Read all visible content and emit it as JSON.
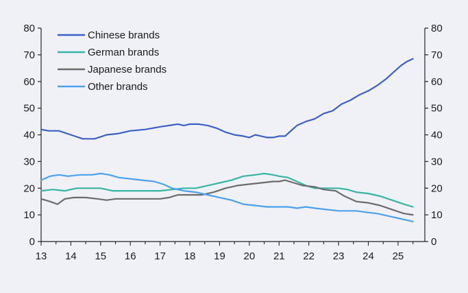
{
  "chart_data": {
    "type": "line",
    "title": "",
    "xlabel": "",
    "ylabel": "",
    "xlim": [
      13,
      25.9
    ],
    "ylim": [
      0,
      80
    ],
    "grid": false,
    "legend_position": "top-left",
    "x_ticks": [
      13,
      14,
      15,
      16,
      17,
      18,
      19,
      20,
      21,
      22,
      23,
      24,
      25
    ],
    "x_tick_labels": [
      "13",
      "14",
      "15",
      "16",
      "17",
      "18",
      "19",
      "20",
      "21",
      "22",
      "23",
      "24",
      "25"
    ],
    "y_ticks": [
      0,
      10,
      20,
      30,
      40,
      50,
      60,
      70,
      80
    ],
    "y_tick_labels": [
      "0",
      "10",
      "20",
      "30",
      "40",
      "50",
      "60",
      "70",
      "80"
    ],
    "x_minor_step": 0.5,
    "series": [
      {
        "name": "Chinese brands",
        "color": "#3a5fc8",
        "points": [
          [
            13.0,
            42
          ],
          [
            13.25,
            41.5
          ],
          [
            13.6,
            41.5
          ],
          [
            14.0,
            40
          ],
          [
            14.4,
            38.5
          ],
          [
            14.8,
            38.5
          ],
          [
            15.2,
            40
          ],
          [
            15.6,
            40.5
          ],
          [
            16.0,
            41.5
          ],
          [
            16.5,
            42
          ],
          [
            17.0,
            43
          ],
          [
            17.3,
            43.5
          ],
          [
            17.6,
            44
          ],
          [
            17.8,
            43.5
          ],
          [
            18.0,
            44
          ],
          [
            18.3,
            44
          ],
          [
            18.6,
            43.5
          ],
          [
            18.9,
            42.5
          ],
          [
            19.2,
            41
          ],
          [
            19.5,
            40
          ],
          [
            19.8,
            39.5
          ],
          [
            20.0,
            39
          ],
          [
            20.2,
            40
          ],
          [
            20.4,
            39.5
          ],
          [
            20.6,
            39
          ],
          [
            20.8,
            39
          ],
          [
            21.0,
            39.5
          ],
          [
            21.2,
            39.5
          ],
          [
            21.35,
            41
          ],
          [
            21.6,
            43.5
          ],
          [
            21.9,
            45
          ],
          [
            22.2,
            46
          ],
          [
            22.5,
            48
          ],
          [
            22.8,
            49
          ],
          [
            23.1,
            51.5
          ],
          [
            23.4,
            53
          ],
          [
            23.7,
            55
          ],
          [
            24.0,
            56.5
          ],
          [
            24.3,
            58.5
          ],
          [
            24.6,
            61
          ],
          [
            24.9,
            64
          ],
          [
            25.1,
            66
          ],
          [
            25.3,
            67.5
          ],
          [
            25.5,
            68.5
          ]
        ]
      },
      {
        "name": "German brands",
        "color": "#35b5a2",
        "points": [
          [
            13.0,
            19
          ],
          [
            13.4,
            19.5
          ],
          [
            13.8,
            19
          ],
          [
            14.2,
            20
          ],
          [
            14.6,
            20
          ],
          [
            15.0,
            20
          ],
          [
            15.4,
            19
          ],
          [
            15.8,
            19
          ],
          [
            16.2,
            19
          ],
          [
            16.6,
            19
          ],
          [
            17.0,
            19
          ],
          [
            17.4,
            19.5
          ],
          [
            17.8,
            20
          ],
          [
            18.2,
            20
          ],
          [
            18.6,
            21
          ],
          [
            19.0,
            22
          ],
          [
            19.4,
            23
          ],
          [
            19.8,
            24.5
          ],
          [
            20.2,
            25
          ],
          [
            20.5,
            25.5
          ],
          [
            20.8,
            25
          ],
          [
            21.0,
            24.5
          ],
          [
            21.3,
            24
          ],
          [
            21.6,
            22.5
          ],
          [
            21.9,
            21
          ],
          [
            22.2,
            20
          ],
          [
            22.6,
            20
          ],
          [
            23.0,
            20
          ],
          [
            23.3,
            19.5
          ],
          [
            23.6,
            18.5
          ],
          [
            24.0,
            18
          ],
          [
            24.4,
            17
          ],
          [
            24.8,
            15.5
          ],
          [
            25.2,
            14
          ],
          [
            25.5,
            13
          ]
        ]
      },
      {
        "name": "Japanese brands",
        "color": "#6b6b6b",
        "points": [
          [
            13.0,
            16
          ],
          [
            13.3,
            15
          ],
          [
            13.55,
            14
          ],
          [
            13.8,
            16
          ],
          [
            14.1,
            16.5
          ],
          [
            14.5,
            16.5
          ],
          [
            14.9,
            16
          ],
          [
            15.2,
            15.5
          ],
          [
            15.5,
            16
          ],
          [
            15.8,
            16
          ],
          [
            16.2,
            16
          ],
          [
            16.6,
            16
          ],
          [
            17.0,
            16
          ],
          [
            17.3,
            16.5
          ],
          [
            17.6,
            17.5
          ],
          [
            18.0,
            17.5
          ],
          [
            18.4,
            17.5
          ],
          [
            18.8,
            18.5
          ],
          [
            19.2,
            20
          ],
          [
            19.6,
            21
          ],
          [
            20.0,
            21.5
          ],
          [
            20.4,
            22
          ],
          [
            20.8,
            22.5
          ],
          [
            21.0,
            22.5
          ],
          [
            21.2,
            23
          ],
          [
            21.5,
            22
          ],
          [
            21.8,
            21
          ],
          [
            22.2,
            20.5
          ],
          [
            22.5,
            19.5
          ],
          [
            22.9,
            19
          ],
          [
            23.2,
            17
          ],
          [
            23.6,
            15
          ],
          [
            24.0,
            14.5
          ],
          [
            24.4,
            13.5
          ],
          [
            24.8,
            12
          ],
          [
            25.2,
            10.5
          ],
          [
            25.5,
            10
          ]
        ]
      },
      {
        "name": "Other brands",
        "color": "#4aa1f0",
        "points": [
          [
            13.0,
            23
          ],
          [
            13.3,
            24.5
          ],
          [
            13.6,
            25
          ],
          [
            13.9,
            24.5
          ],
          [
            14.3,
            25
          ],
          [
            14.7,
            25
          ],
          [
            15.0,
            25.5
          ],
          [
            15.3,
            25
          ],
          [
            15.6,
            24
          ],
          [
            16.0,
            23.5
          ],
          [
            16.4,
            23
          ],
          [
            16.8,
            22.5
          ],
          [
            17.1,
            21.5
          ],
          [
            17.4,
            20
          ],
          [
            17.8,
            19
          ],
          [
            18.2,
            18.5
          ],
          [
            18.6,
            17.5
          ],
          [
            19.0,
            16.5
          ],
          [
            19.4,
            15.5
          ],
          [
            19.8,
            14
          ],
          [
            20.2,
            13.5
          ],
          [
            20.6,
            13
          ],
          [
            21.0,
            13
          ],
          [
            21.3,
            13
          ],
          [
            21.6,
            12.5
          ],
          [
            21.9,
            13
          ],
          [
            22.2,
            12.5
          ],
          [
            22.6,
            12
          ],
          [
            23.0,
            11.5
          ],
          [
            23.3,
            11.5
          ],
          [
            23.6,
            11.5
          ],
          [
            23.9,
            11
          ],
          [
            24.3,
            10.5
          ],
          [
            24.7,
            9.5
          ],
          [
            25.1,
            8.5
          ],
          [
            25.5,
            7.5
          ]
        ]
      }
    ]
  }
}
